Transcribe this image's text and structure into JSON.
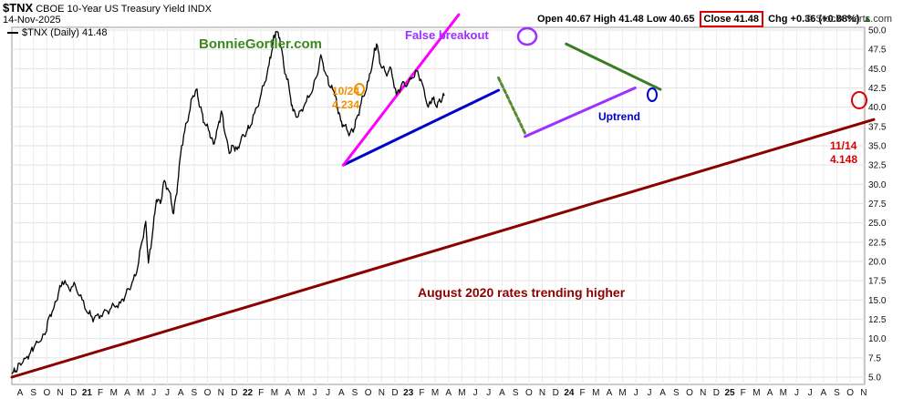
{
  "header": {
    "ticker": "$TNX",
    "description": "CBOE 10-Year US Treasury Yield INDX",
    "date": "14-Nov-2025",
    "open": "Open 40.67",
    "high": "High 41.48",
    "low": "Low 40.65",
    "close": "Close 41.48",
    "change": "Chg +0.36 (+0.88%)",
    "change_arrow": "▲",
    "credit": "© StockCharts.com",
    "legend": "$TNX (Daily) 41.48"
  },
  "chart_data": {
    "type": "line",
    "series": [
      {
        "name": "$TNX (Daily)",
        "color": "#000000",
        "points": [
          [
            0,
            5.4
          ],
          [
            0.3,
            5.8
          ],
          [
            0.6,
            6.8
          ],
          [
            1.0,
            7.4
          ],
          [
            1.4,
            8.2
          ],
          [
            1.7,
            9.0
          ],
          [
            2.1,
            9.6
          ],
          [
            2.5,
            10.5
          ],
          [
            2.8,
            12.8
          ],
          [
            3.2,
            14.2
          ],
          [
            3.5,
            15.8
          ],
          [
            3.8,
            17.4
          ],
          [
            4.3,
            16.5
          ],
          [
            4.8,
            16.8
          ],
          [
            5.3,
            15.0
          ],
          [
            5.8,
            13.2
          ],
          [
            6.2,
            12.6
          ],
          [
            6.7,
            13.0
          ],
          [
            7.2,
            13.6
          ],
          [
            7.7,
            14.3
          ],
          [
            8.2,
            14.6
          ],
          [
            8.6,
            15.8
          ],
          [
            9.0,
            16.8
          ],
          [
            9.4,
            18.5
          ],
          [
            9.8,
            22.5
          ],
          [
            10.1,
            25.2
          ],
          [
            10.3,
            19.8
          ],
          [
            10.6,
            23.5
          ],
          [
            10.9,
            28.0
          ],
          [
            11.2,
            27.5
          ],
          [
            11.5,
            30.5
          ],
          [
            11.9,
            29.0
          ],
          [
            12.2,
            26.2
          ],
          [
            12.5,
            30.0
          ],
          [
            12.8,
            35.0
          ],
          [
            13.2,
            38.0
          ],
          [
            13.6,
            41.2
          ],
          [
            13.9,
            42.3
          ],
          [
            14.2,
            40.0
          ],
          [
            14.5,
            38.0
          ],
          [
            14.9,
            36.8
          ],
          [
            15.2,
            35.2
          ],
          [
            15.5,
            37.2
          ],
          [
            15.8,
            39.5
          ],
          [
            16.1,
            36.4
          ],
          [
            16.4,
            34.0
          ],
          [
            16.7,
            35.0
          ],
          [
            17.0,
            34.5
          ],
          [
            17.3,
            36.0
          ],
          [
            17.7,
            36.8
          ],
          [
            18.0,
            37.6
          ],
          [
            18.5,
            40.0
          ],
          [
            19.0,
            42.8
          ],
          [
            19.4,
            45.5
          ],
          [
            19.7,
            48.5
          ],
          [
            19.9,
            49.8
          ],
          [
            20.2,
            49.0
          ],
          [
            20.5,
            45.5
          ],
          [
            20.9,
            42.6
          ],
          [
            21.2,
            39.5
          ],
          [
            21.6,
            38.8
          ],
          [
            22.0,
            40.0
          ],
          [
            22.5,
            41.6
          ],
          [
            23.0,
            44.0
          ],
          [
            23.3,
            46.8
          ],
          [
            23.7,
            44.2
          ],
          [
            24.0,
            42.6
          ],
          [
            24.3,
            42.0
          ],
          [
            24.5,
            40.5
          ],
          [
            24.8,
            38.2
          ],
          [
            25.1,
            37.6
          ],
          [
            25.5,
            36.6
          ],
          [
            25.8,
            37.2
          ],
          [
            26.1,
            39.0
          ],
          [
            26.5,
            41.4
          ],
          [
            26.9,
            43.4
          ],
          [
            27.3,
            46.8
          ],
          [
            27.5,
            48.2
          ],
          [
            27.8,
            45.5
          ],
          [
            28.2,
            44.4
          ],
          [
            28.6,
            45.0
          ],
          [
            29.0,
            41.6
          ],
          [
            29.4,
            43.0
          ],
          [
            29.8,
            42.8
          ],
          [
            30.2,
            43.8
          ],
          [
            30.6,
            44.7
          ],
          [
            31.0,
            42.8
          ],
          [
            31.4,
            40.0
          ],
          [
            31.7,
            41.2
          ],
          [
            32.0,
            40.1
          ],
          [
            32.3,
            40.8
          ],
          [
            32.6,
            41.48
          ]
        ]
      }
    ],
    "x_ticks": [
      {
        "x": 0,
        "label": "A"
      },
      {
        "x": 1,
        "label": "S"
      },
      {
        "x": 2,
        "label": "O"
      },
      {
        "x": 3,
        "label": "N"
      },
      {
        "x": 4,
        "label": "D"
      },
      {
        "x": 5,
        "label": "21",
        "year": true
      },
      {
        "x": 6,
        "label": "F"
      },
      {
        "x": 7,
        "label": "M"
      },
      {
        "x": 8,
        "label": "A"
      },
      {
        "x": 9,
        "label": "M"
      },
      {
        "x": 10,
        "label": "J"
      },
      {
        "x": 11,
        "label": "J"
      },
      {
        "x": 12,
        "label": "A"
      },
      {
        "x": 13,
        "label": "S"
      },
      {
        "x": 14,
        "label": "O"
      },
      {
        "x": 15,
        "label": "N"
      },
      {
        "x": 16,
        "label": "D"
      },
      {
        "x": 17,
        "label": "22",
        "year": true
      },
      {
        "x": 18,
        "label": "F"
      },
      {
        "x": 19,
        "label": "M"
      },
      {
        "x": 20,
        "label": "A"
      },
      {
        "x": 21,
        "label": "M"
      },
      {
        "x": 22,
        "label": "J"
      },
      {
        "x": 23,
        "label": "J"
      },
      {
        "x": 24,
        "label": "A"
      },
      {
        "x": 25,
        "label": "S"
      },
      {
        "x": 26,
        "label": "O"
      },
      {
        "x": 27,
        "label": "N"
      },
      {
        "x": 28,
        "label": "D"
      },
      {
        "x": 29,
        "label": "23",
        "year": true
      },
      {
        "x": 30,
        "label": "F"
      },
      {
        "x": 31,
        "label": "M"
      },
      {
        "x": 32,
        "label": "A"
      },
      {
        "x": 33,
        "label": "M"
      },
      {
        "x": 34,
        "label": "J"
      },
      {
        "x": 35,
        "label": "J"
      },
      {
        "x": 36,
        "label": "A"
      },
      {
        "x": 37,
        "label": "S"
      },
      {
        "x": 38,
        "label": "O"
      },
      {
        "x": 39,
        "label": "N"
      },
      {
        "x": 40,
        "label": "D"
      },
      {
        "x": 41,
        "label": "24",
        "year": true
      },
      {
        "x": 42,
        "label": "F"
      },
      {
        "x": 43,
        "label": "M"
      },
      {
        "x": 44,
        "label": "A"
      },
      {
        "x": 45,
        "label": "M"
      },
      {
        "x": 46,
        "label": "J"
      },
      {
        "x": 47,
        "label": "J"
      },
      {
        "x": 48,
        "label": "A"
      },
      {
        "x": 49,
        "label": "S"
      },
      {
        "x": 50,
        "label": "O"
      },
      {
        "x": 51,
        "label": "N"
      },
      {
        "x": 52,
        "label": "D"
      },
      {
        "x": 53,
        "label": "25",
        "year": true
      },
      {
        "x": 54,
        "label": "F"
      },
      {
        "x": 55,
        "label": "M"
      },
      {
        "x": 56,
        "label": "A"
      },
      {
        "x": 57,
        "label": "M"
      },
      {
        "x": 58,
        "label": "J"
      },
      {
        "x": 59,
        "label": "J"
      },
      {
        "x": 60,
        "label": "A"
      },
      {
        "x": 61,
        "label": "S"
      },
      {
        "x": 62,
        "label": "O"
      },
      {
        "x": 63,
        "label": "N"
      }
    ],
    "x_range": [
      0,
      64
    ],
    "y_ticks": [
      "5.0",
      "7.5",
      "10.0",
      "12.5",
      "15.0",
      "17.5",
      "20.0",
      "22.5",
      "25.0",
      "27.5",
      "30.0",
      "32.5",
      "35.0",
      "37.5",
      "40.0",
      "42.5",
      "45.0",
      "47.5",
      "50.0"
    ],
    "ylim": [
      4.0,
      51.0
    ],
    "grid": true,
    "trendlines": [
      {
        "name": "long-term-trend",
        "color": "#8b0000",
        "from": [
          0,
          5.0
        ],
        "to": [
          65,
          38.4
        ]
      },
      {
        "name": "uptrend",
        "color": "#0000cc",
        "from": [
          25,
          32.5
        ],
        "to": [
          36.7,
          42.2
        ]
      },
      {
        "name": "false-breakout-line",
        "color": "#ff00ff",
        "from": [
          25,
          32.5
        ],
        "to": [
          33.7,
          52.0
        ]
      },
      {
        "name": "2024-decline",
        "color": "#558b2f",
        "dashed": true,
        "from": [
          36.7,
          43.8
        ],
        "to": [
          38.7,
          36.6
        ]
      },
      {
        "name": "2025-support",
        "color": "#9b30ff",
        "from": [
          38.7,
          36.2
        ],
        "to": [
          47.0,
          42.5
        ]
      },
      {
        "name": "2025-resistance",
        "color": "#3a7d24",
        "from": [
          41.8,
          48.2
        ],
        "to": [
          48.9,
          42.3
        ]
      }
    ],
    "annotations": {
      "brand": "BonnieGortler.com",
      "false_breakout": "False breakout",
      "uptrend": "Uptrend",
      "date_2023": "10/24",
      "value_2023": "4.234",
      "date_2025": "11/14",
      "value_2025": "4.148",
      "trend_note": "August 2020 rates trending higher"
    }
  }
}
